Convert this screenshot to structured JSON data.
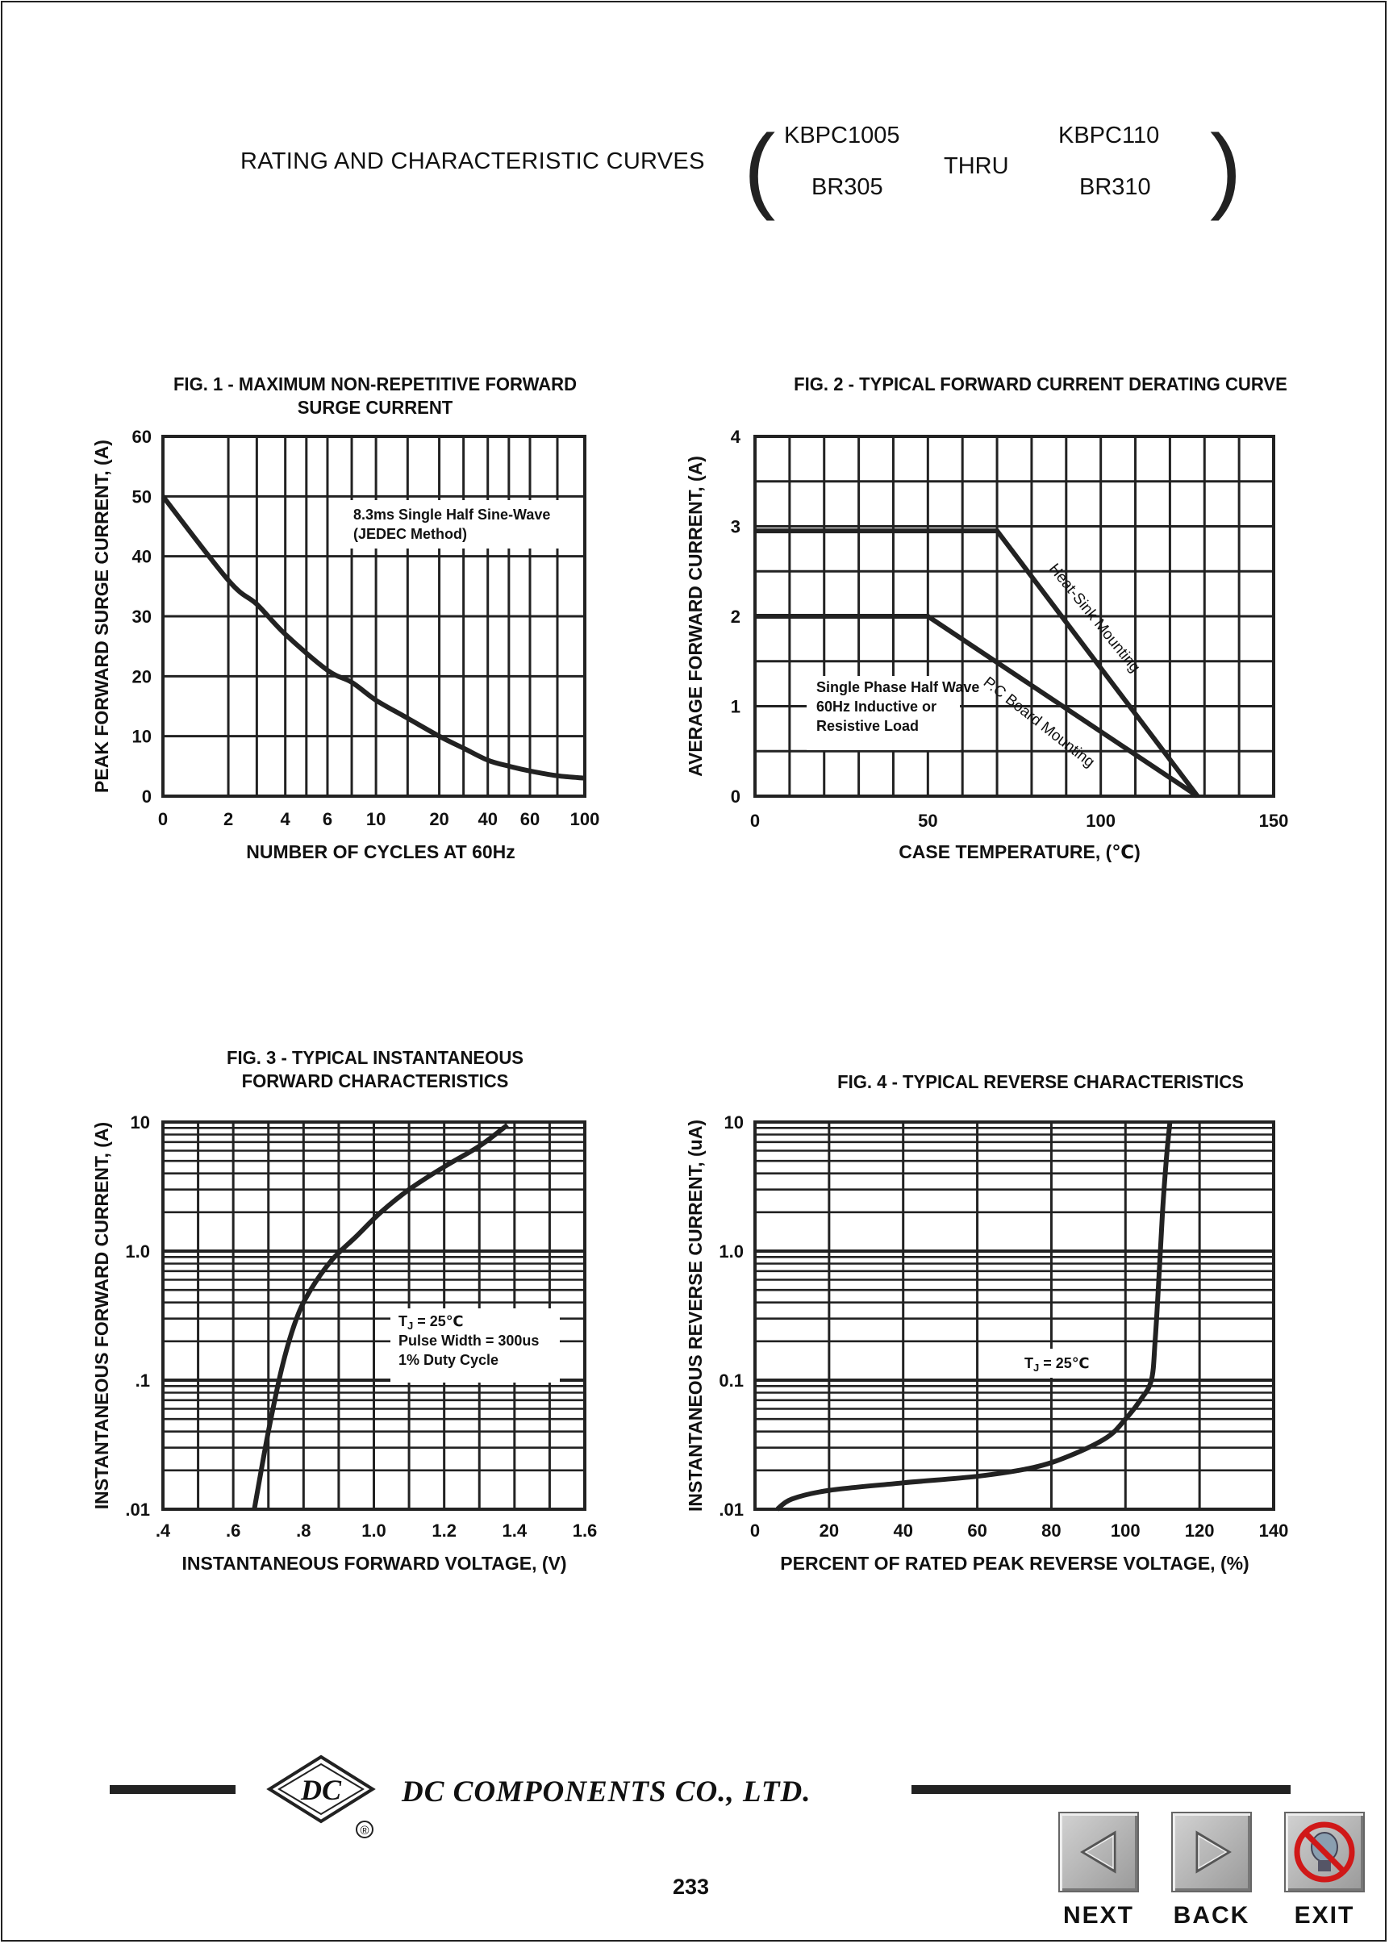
{
  "header": {
    "title": "RATING AND CHARACTERISTIC CURVES",
    "part_top_left": "KBPC1005",
    "part_bottom_left": "BR305",
    "thru": "THRU",
    "part_top_right": "KBPC110",
    "part_bottom_right": "BR310"
  },
  "chart_data": [
    {
      "id": "fig1",
      "type": "line",
      "title_line1": "FIG. 1 - MAXIMUM NON-REPETITIVE FORWARD",
      "title_line2": "SURGE CURRENT",
      "xlabel": "NUMBER OF CYCLES AT 60Hz",
      "ylabel": "PEAK FORWARD SURGE CURRENT, (A)",
      "xticks": [
        "0",
        "2",
        "4",
        "6",
        "10",
        "20",
        "40",
        "60",
        "100"
      ],
      "yticks": [
        "0",
        "10",
        "20",
        "30",
        "40",
        "50",
        "60"
      ],
      "ylim": [
        0,
        60
      ],
      "annotation_line1": "8.3ms Single Half Sine-Wave",
      "annotation_line2": "(JEDEC Method)",
      "series": [
        {
          "x": [
            1,
            2,
            3,
            4,
            6,
            8,
            10,
            15,
            20,
            30,
            40,
            50,
            60,
            80,
            100
          ],
          "y": [
            50,
            36,
            32,
            27,
            21,
            19,
            16,
            13,
            10,
            8,
            6,
            5,
            4.2,
            3.4,
            3
          ]
        }
      ]
    },
    {
      "id": "fig2",
      "type": "line",
      "title": "FIG. 2 - TYPICAL FORWARD CURRENT DERATING CURVE",
      "xlabel": "CASE TEMPERATURE, (℃)",
      "ylabel": "AVERAGE FORWARD CURRENT, (A)",
      "xticks": [
        "0",
        "50",
        "100",
        "150"
      ],
      "yticks": [
        "0",
        "1",
        "2",
        "3",
        "4"
      ],
      "xlim": [
        0,
        150
      ],
      "ylim": [
        0,
        4
      ],
      "annotation_line1": "Single Phase Half Wave",
      "annotation_line2": "60Hz Inductive or",
      "annotation_line3": "Resistive Load",
      "series": [
        {
          "name": "Heat-Sink Mounting",
          "x": [
            0,
            70,
            128
          ],
          "y": [
            2.95,
            2.95,
            0
          ]
        },
        {
          "name": "P.C Board Mounting",
          "x": [
            0,
            50,
            128
          ],
          "y": [
            2.0,
            2.0,
            0
          ]
        }
      ]
    },
    {
      "id": "fig3",
      "type": "line",
      "title_line1": "FIG. 3 - TYPICAL INSTANTANEOUS",
      "title_line2": "FORWARD CHARACTERISTICS",
      "xlabel": "INSTANTANEOUS FORWARD VOLTAGE, (V)",
      "ylabel": "INSTANTANEOUS FORWARD CURRENT, (A)",
      "xticks": [
        ".4",
        ".6",
        ".8",
        "1.0",
        "1.2",
        "1.4",
        "1.6"
      ],
      "yticks": [
        ".01",
        ".1",
        "1.0",
        "10"
      ],
      "xlim": [
        0.4,
        1.6
      ],
      "ylim": [
        0.01,
        10
      ],
      "yscale": "log",
      "annotation_line1": "T",
      "annotation_sub": "J",
      "annotation_line1_rest": " = 25℃",
      "annotation_line2": "Pulse Width = 300us",
      "annotation_line3": "1% Duty Cycle",
      "series": [
        {
          "x": [
            0.66,
            0.7,
            0.74,
            0.78,
            0.82,
            0.88,
            0.95,
            1.02,
            1.1,
            1.2,
            1.3,
            1.38
          ],
          "y": [
            0.01,
            0.04,
            0.13,
            0.3,
            0.5,
            0.85,
            1.3,
            2.0,
            3.0,
            4.5,
            6.5,
            9.5
          ]
        }
      ]
    },
    {
      "id": "fig4",
      "type": "line",
      "title": "FIG. 4 - TYPICAL REVERSE CHARACTERISTICS",
      "xlabel": "PERCENT OF RATED PEAK REVERSE VOLTAGE, (%)",
      "ylabel": "INSTANTANEOUS REVERSE CURRENT, (uA)",
      "xticks": [
        "0",
        "20",
        "40",
        "60",
        "80",
        "100",
        "120",
        "140"
      ],
      "yticks": [
        ".01",
        "0.1",
        "1.0",
        "10"
      ],
      "xlim": [
        0,
        140
      ],
      "ylim": [
        0.01,
        10
      ],
      "yscale": "log",
      "annotation_line1": "T",
      "annotation_sub": "J",
      "annotation_line1_rest": " = 25℃",
      "series": [
        {
          "x": [
            6,
            10,
            20,
            40,
            60,
            75,
            85,
            95,
            100,
            104,
            107,
            108,
            109,
            110,
            111,
            112
          ],
          "y": [
            0.01,
            0.012,
            0.014,
            0.016,
            0.018,
            0.021,
            0.026,
            0.036,
            0.05,
            0.07,
            0.1,
            0.2,
            0.6,
            2,
            5,
            10
          ]
        }
      ]
    }
  ],
  "footer": {
    "company": "DC COMPONENTS CO., LTD.",
    "logo_text": "DC",
    "registered": "®",
    "page_number": "233",
    "next_label": "NEXT",
    "back_label": "BACK",
    "exit_label": "EXIT"
  }
}
